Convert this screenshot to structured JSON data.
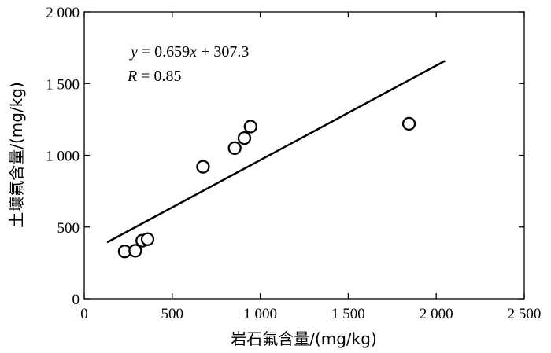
{
  "chart_data": {
    "type": "scatter",
    "title": "",
    "xlabel": "岩石氟含量/(mg/kg)",
    "ylabel": "土壤氟含量/(mg/kg)",
    "xlim": [
      0,
      2500
    ],
    "ylim": [
      0,
      2000
    ],
    "xticks": [
      0,
      500,
      1000,
      1500,
      2000,
      2500
    ],
    "yticks": [
      0,
      500,
      1000,
      1500,
      2000
    ],
    "xtick_labels": [
      "0",
      "500",
      "1 000",
      "1 500",
      "2 000",
      "2 500"
    ],
    "ytick_labels": [
      "0",
      "500",
      "1 000",
      "1 500",
      "2 000"
    ],
    "grid": false,
    "points": [
      {
        "x": 230,
        "y": 330
      },
      {
        "x": 290,
        "y": 335
      },
      {
        "x": 330,
        "y": 405
      },
      {
        "x": 360,
        "y": 415
      },
      {
        "x": 675,
        "y": 920
      },
      {
        "x": 855,
        "y": 1050
      },
      {
        "x": 910,
        "y": 1120
      },
      {
        "x": 945,
        "y": 1200
      },
      {
        "x": 1845,
        "y": 1220
      }
    ],
    "fit_line": {
      "slope": 0.659,
      "intercept": 307.3,
      "x_start": 130,
      "x_end": 2050
    },
    "annotations": {
      "eq_y": "y",
      "eq_middle": " = 0.659",
      "eq_x": "x",
      "eq_end": " + 307.3",
      "r_label": "R",
      "r_value": " = 0.85"
    }
  }
}
